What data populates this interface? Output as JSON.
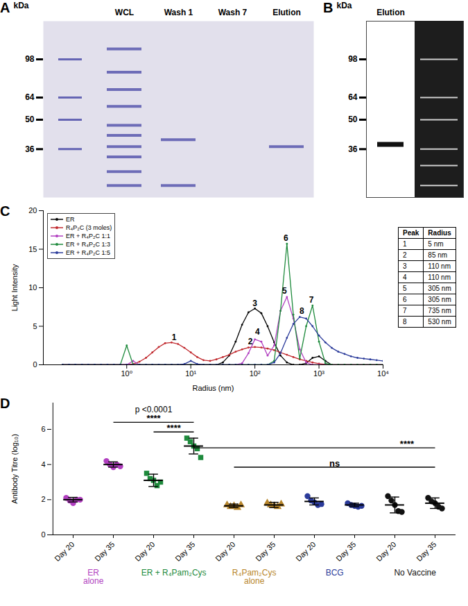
{
  "chart_data": [
    {
      "type": "gel",
      "panel": "A",
      "ylabel": "kDa",
      "log": "y",
      "categories": [
        null,
        "WCL",
        "Wash 1",
        "Wash 7",
        "Elution"
      ],
      "ylim": [
        21,
        150
      ],
      "yticks": [
        98,
        64,
        50,
        36
      ],
      "color": "#4646a6",
      "bands": [
        {
          "lane": 0,
          "kDa": 98
        },
        {
          "lane": 0,
          "kDa": 64
        },
        {
          "lane": 0,
          "kDa": 50
        },
        {
          "lane": 0,
          "kDa": 36
        },
        {
          "lane": 1,
          "kDa": 110
        },
        {
          "lane": 1,
          "kDa": 85
        },
        {
          "lane": 1,
          "kDa": 70
        },
        {
          "lane": 1,
          "kDa": 58
        },
        {
          "lane": 1,
          "kDa": 47
        },
        {
          "lane": 1,
          "kDa": 42
        },
        {
          "lane": 1,
          "kDa": 37
        },
        {
          "lane": 1,
          "kDa": 33
        },
        {
          "lane": 1,
          "kDa": 28
        },
        {
          "lane": 1,
          "kDa": 24
        },
        {
          "lane": 2,
          "kDa": 40
        },
        {
          "lane": 2,
          "kDa": 24
        },
        {
          "lane": 4,
          "kDa": 37
        }
      ]
    },
    {
      "type": "blot",
      "panel": "B",
      "ylabel": "kDa",
      "log": "y",
      "categories": [
        "Elution",
        null
      ],
      "ylim": [
        21,
        150
      ],
      "yticks": [
        98,
        64,
        50,
        36
      ],
      "color": "#111111",
      "bands": [
        {
          "lane": 0,
          "kDa": 38
        },
        {
          "lane": 1,
          "kDa": 98
        },
        {
          "lane": 1,
          "kDa": 64
        },
        {
          "lane": 1,
          "kDa": 50
        },
        {
          "lane": 1,
          "kDa": 36
        },
        {
          "lane": 1,
          "kDa": 30
        },
        {
          "lane": 1,
          "kDa": 24
        }
      ]
    },
    {
      "type": "line",
      "panel": "C",
      "xlabel": "Radius (nm)",
      "ylabel": "Light Intensity",
      "log": "x",
      "xlim": [
        0.05,
        10000
      ],
      "xticks": [
        {
          "value": 1,
          "label": "10⁰"
        },
        {
          "value": 10,
          "label": "10¹"
        },
        {
          "value": 100,
          "label": "10²"
        },
        {
          "value": 1000,
          "label": "10³"
        },
        {
          "value": 10000,
          "label": "10⁴"
        }
      ],
      "ylim": [
        0,
        20
      ],
      "yticks": [
        0,
        5,
        10,
        15,
        20
      ],
      "marker": "circle",
      "legend": "top-left",
      "x": [
        0.1,
        0.126,
        0.158,
        0.2,
        0.251,
        0.316,
        0.398,
        0.501,
        0.631,
        0.794,
        1,
        1.26,
        1.58,
        2,
        2.51,
        3.16,
        3.98,
        5.01,
        6.31,
        7.94,
        10,
        12.6,
        15.8,
        20,
        25.1,
        31.6,
        39.8,
        50.1,
        63.1,
        79.4,
        100,
        126,
        158,
        200,
        251,
        316,
        398,
        501,
        631,
        794,
        1000,
        1260,
        1580,
        2000,
        2510,
        3160,
        3980,
        5010,
        6310,
        7940,
        10000
      ],
      "series": [
        {
          "name": "ER",
          "color": "#000000",
          "values": [
            0,
            0,
            0,
            0,
            0,
            0,
            0,
            0,
            0,
            0,
            0,
            0,
            0,
            0,
            0,
            0,
            0,
            0,
            0,
            0,
            0,
            0,
            0,
            0,
            0,
            0.3,
            1.2,
            3.0,
            5.2,
            6.8,
            7.3,
            6.7,
            5.0,
            2.9,
            1.2,
            0.3,
            0,
            0,
            0.2,
            0.9,
            1.1,
            0.5,
            0,
            0,
            0,
            0,
            0,
            0,
            0,
            0,
            0
          ]
        },
        {
          "name": "R₄P₂C (3 moles)",
          "color": "#c0282d",
          "values": [
            0,
            0,
            0,
            0,
            0,
            0,
            0,
            0,
            0,
            0,
            0,
            0.1,
            0.4,
            0.9,
            1.6,
            2.3,
            2.8,
            2.9,
            2.7,
            2.2,
            1.6,
            1.0,
            0.6,
            0.5,
            0.7,
            1.0,
            1.3,
            1.7,
            2.0,
            2.25,
            2.3,
            2.25,
            2.1,
            1.9,
            1.6,
            1.3,
            1.0,
            0.7,
            0.5,
            0.3,
            0.15,
            0.05,
            0,
            0,
            0,
            0,
            0,
            0,
            0,
            0,
            0
          ]
        },
        {
          "name": "ER + R₄P₂C 1:1",
          "color": "#b13fc0",
          "values": [
            0,
            0,
            0,
            0,
            0,
            0,
            0,
            0,
            0,
            0,
            0,
            0.5,
            0,
            0,
            0,
            0,
            0,
            0,
            0,
            0,
            0,
            0,
            0,
            0,
            0,
            0,
            0,
            0,
            0.2,
            1.5,
            3.3,
            3.0,
            1.2,
            2.5,
            7.0,
            8.8,
            6.0,
            2.0,
            0.3,
            0,
            0,
            0,
            0,
            0,
            0,
            0,
            0,
            0,
            0,
            0,
            0
          ]
        },
        {
          "name": "ER + R₄P₂C 1:3",
          "color": "#1e8a3c",
          "values": [
            0,
            0,
            0,
            0,
            0,
            0,
            0,
            0,
            0,
            0,
            2.5,
            0,
            0,
            0,
            0,
            0,
            0,
            0,
            0,
            0,
            0,
            0,
            0,
            0,
            0,
            0,
            0,
            0,
            0,
            0,
            0,
            0,
            0,
            0.5,
            7.0,
            15.7,
            6.5,
            0.8,
            5.0,
            7.7,
            3.0,
            0.2,
            0,
            0,
            0,
            0,
            0,
            0,
            0,
            0,
            0
          ]
        },
        {
          "name": "ER + R₄P₂C 1:5",
          "color": "#2a3a9a",
          "values": [
            0,
            0,
            0,
            0,
            0,
            0,
            0,
            0,
            0,
            0,
            0,
            0,
            0,
            0,
            0,
            0,
            0,
            0,
            0,
            0.1,
            0.5,
            0.1,
            0,
            0,
            0,
            0,
            0,
            0,
            0,
            0,
            0,
            0,
            0,
            0.3,
            1.5,
            3.5,
            5.3,
            6.2,
            6.0,
            5.0,
            3.8,
            2.9,
            2.2,
            1.7,
            1.4,
            1.1,
            0.9,
            0.8,
            0.7,
            0.6,
            0.5
          ]
        }
      ],
      "annotations": [
        {
          "text": "1",
          "x": 5.5,
          "y": 3.2
        },
        {
          "text": "2",
          "x": 85,
          "y": 2.7
        },
        {
          "text": "3",
          "x": 100,
          "y": 7.6
        },
        {
          "text": "4",
          "x": 110,
          "y": 3.9
        },
        {
          "text": "5",
          "x": 290,
          "y": 9.2
        },
        {
          "text": "6",
          "x": 305,
          "y": 16.1
        },
        {
          "text": "7",
          "x": 760,
          "y": 8.1
        },
        {
          "text": "8",
          "x": 540,
          "y": 6.6
        }
      ],
      "table": {
        "columns": [
          "Peak",
          "Radius"
        ],
        "rows": [
          [
            "1",
            "5 nm"
          ],
          [
            "2",
            "85 nm"
          ],
          [
            "3",
            "110 nm"
          ],
          [
            "4",
            "110 nm"
          ],
          [
            "5",
            "305 nm"
          ],
          [
            "6",
            "305 nm"
          ],
          [
            "7",
            "735 nm"
          ],
          [
            "8",
            "530 nm"
          ]
        ]
      }
    },
    {
      "type": "scatter",
      "panel": "D",
      "ylabel": "Antibody Titre (log₁₀)",
      "ylim": [
        0,
        7.5
      ],
      "yticks": [
        0,
        2,
        4,
        6
      ],
      "categories": [
        "Day 20",
        "Day 35",
        "Day 20",
        "Day 35",
        "Day 20",
        "Day 35",
        "Day 20",
        "Day 35",
        "Day 20",
        "Day 35"
      ],
      "groups": [
        {
          "name": "ER\nalone",
          "color": "#b13fc0",
          "marker": "circle",
          "categories": [
            0,
            1
          ]
        },
        {
          "name": "ER + R₄Pam₂Cys",
          "color": "#1e8a3c",
          "marker": "square",
          "categories": [
            2,
            3
          ]
        },
        {
          "name": "R₄Pam₂Cys\nalone",
          "color": "#b8862b",
          "marker": "triangle",
          "categories": [
            4,
            5
          ]
        },
        {
          "name": "BCG",
          "color": "#2a3a9a",
          "marker": "circle",
          "categories": [
            6,
            7
          ]
        },
        {
          "name": "No Vaccine",
          "color": "#111111",
          "marker": "circle",
          "categories": [
            8,
            9
          ]
        }
      ],
      "values": [
        [
          2.1,
          1.95,
          1.8,
          2.0,
          2.0
        ],
        [
          4.2,
          4.0,
          3.85,
          4.0,
          3.9
        ],
        [
          3.5,
          3.2,
          3.1,
          2.8,
          3.0
        ],
        [
          5.5,
          5.3,
          5.05,
          4.9,
          4.4
        ],
        [
          1.7,
          1.6,
          1.65,
          1.55,
          1.7
        ],
        [
          1.8,
          1.7,
          1.65,
          1.6,
          1.75
        ],
        [
          2.2,
          1.95,
          1.85,
          1.7,
          1.75
        ],
        [
          1.8,
          1.7,
          1.65,
          1.6,
          1.65
        ],
        [
          2.2,
          1.95,
          1.7,
          1.35,
          1.3
        ],
        [
          2.1,
          1.9,
          1.8,
          1.6,
          1.5
        ]
      ],
      "means": [
        2.0,
        4.0,
        3.1,
        5.05,
        1.65,
        1.7,
        1.9,
        1.7,
        1.7,
        1.8
      ],
      "errors": [
        0.13,
        0.15,
        0.35,
        0.45,
        0.1,
        0.15,
        0.2,
        0.1,
        0.45,
        0.3
      ],
      "brackets": [
        {
          "from": 1,
          "to": 3,
          "y": 6.4,
          "text": "****",
          "text_x": 2
        },
        {
          "from": 2,
          "to": 3,
          "y": 5.85,
          "text": "****",
          "text_x": 2.5
        },
        {
          "from": 3,
          "to": 9,
          "y": 4.95,
          "text": "****",
          "text_x": 8.3
        },
        {
          "from": 4,
          "to": 9,
          "y": 3.85,
          "text": "ns",
          "text_x": 6.5
        }
      ],
      "annotations": [
        {
          "text": "p <0.0001",
          "x": 2,
          "y": 6.95
        }
      ]
    }
  ]
}
